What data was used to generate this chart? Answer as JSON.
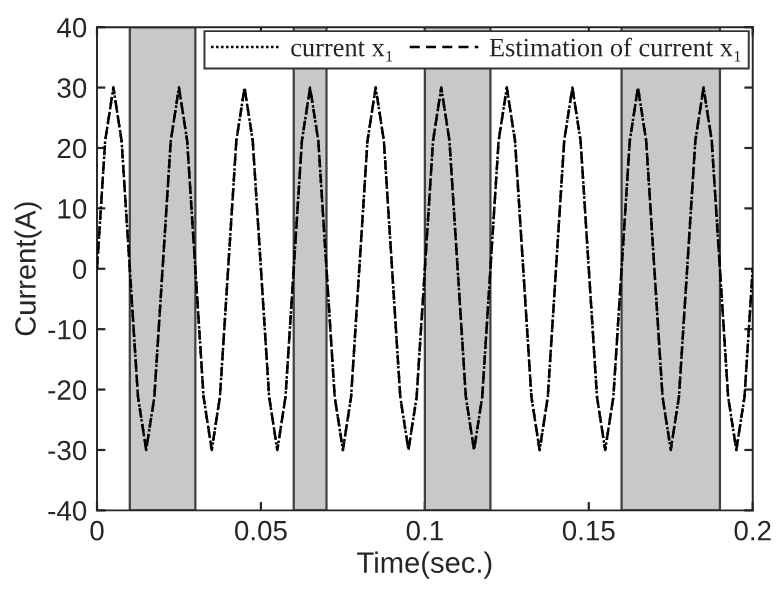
{
  "chart_data": {
    "type": "line",
    "xlabel": "Time(sec.)",
    "ylabel": "Current(A)",
    "x": [
      0,
      0.0025,
      0.005,
      0.0075,
      0.01,
      0.0125,
      0.015,
      0.0175,
      0.02,
      0.0225,
      0.025,
      0.0275,
      0.03,
      0.0325,
      0.035,
      0.0375,
      0.04,
      0.0425,
      0.045,
      0.0475,
      0.05,
      0.0525,
      0.055,
      0.0575,
      0.06,
      0.0625,
      0.065,
      0.0675,
      0.07,
      0.0725,
      0.075,
      0.0775,
      0.08,
      0.0825,
      0.085,
      0.0875,
      0.09,
      0.0925,
      0.095,
      0.0975,
      0.1,
      0.1025,
      0.105,
      0.1075,
      0.11,
      0.1125,
      0.115,
      0.1175,
      0.12,
      0.1225,
      0.125,
      0.1275,
      0.13,
      0.1325,
      0.135,
      0.1375,
      0.14,
      0.1425,
      0.145,
      0.1475,
      0.15,
      0.1525,
      0.155,
      0.1575,
      0.16,
      0.1625,
      0.165,
      0.1675,
      0.17,
      0.1725,
      0.175,
      0.1775,
      0.18,
      0.1825,
      0.185,
      0.1875,
      0.19,
      0.1925,
      0.195,
      0.1975,
      0.2
    ],
    "series": [
      {
        "name": "current x₁",
        "color": "#000000",
        "line_style": "dotted",
        "values": [
          0,
          21.2,
          30,
          21.2,
          0,
          -21.2,
          -30,
          -21.2,
          0,
          21.2,
          30,
          21.2,
          0,
          -21.2,
          -30,
          -21.2,
          0,
          21.2,
          30,
          21.2,
          0,
          -21.2,
          -30,
          -21.2,
          0,
          21.2,
          30,
          21.2,
          0,
          -21.2,
          -30,
          -21.2,
          0,
          21.2,
          30,
          21.2,
          0,
          -21.2,
          -30,
          -21.2,
          0,
          21.2,
          30,
          21.2,
          0,
          -21.2,
          -30,
          -21.2,
          0,
          21.2,
          30,
          21.2,
          0,
          -21.2,
          -30,
          -21.2,
          0,
          21.2,
          30,
          21.2,
          0,
          -21.2,
          -30,
          -21.2,
          0,
          21.2,
          30,
          21.2,
          0,
          -21.2,
          -30,
          -21.2,
          0,
          21.2,
          30,
          21.2,
          0,
          -21.2,
          -30,
          -21.2,
          0
        ]
      },
      {
        "name": "Estimation of current x₁",
        "color": "#000000",
        "line_style": "dashed",
        "values": [
          0,
          21.2,
          30,
          21.2,
          0,
          -21.2,
          -30,
          -21.2,
          0,
          21.2,
          30,
          21.2,
          0,
          -21.2,
          -30,
          -21.2,
          0,
          21.2,
          30,
          21.2,
          0,
          -21.2,
          -30,
          -21.2,
          0,
          21.2,
          30,
          21.2,
          0,
          -21.2,
          -30,
          -21.2,
          0,
          21.2,
          30,
          21.2,
          0,
          -21.2,
          -30,
          -21.2,
          0,
          21.2,
          30,
          21.2,
          0,
          -21.2,
          -30,
          -21.2,
          0,
          21.2,
          30,
          21.2,
          0,
          -21.2,
          -30,
          -21.2,
          0,
          21.2,
          30,
          21.2,
          0,
          -21.2,
          -30,
          -21.2,
          0,
          21.2,
          30,
          21.2,
          0,
          -21.2,
          -30,
          -21.2,
          0,
          21.2,
          30,
          21.2,
          0,
          -21.2,
          -30,
          -21.2,
          0
        ]
      }
    ],
    "bands": [
      {
        "axis": "x",
        "from": 0.01,
        "to": 0.03,
        "color": "#c8c8c8"
      },
      {
        "axis": "x",
        "from": 0.06,
        "to": 0.07,
        "color": "#c8c8c8"
      },
      {
        "axis": "x",
        "from": 0.1,
        "to": 0.12,
        "color": "#c8c8c8"
      },
      {
        "axis": "x",
        "from": 0.16,
        "to": 0.19,
        "color": "#c8c8c8"
      }
    ],
    "xlim": [
      0,
      0.2
    ],
    "xticks": [
      0,
      0.05,
      0.1,
      0.15,
      0.2
    ],
    "ylim": [
      -40,
      40
    ],
    "yticks": [
      -40,
      -30,
      -20,
      -10,
      0,
      10,
      20,
      30,
      40
    ],
    "grid": false,
    "legend": "top right"
  }
}
